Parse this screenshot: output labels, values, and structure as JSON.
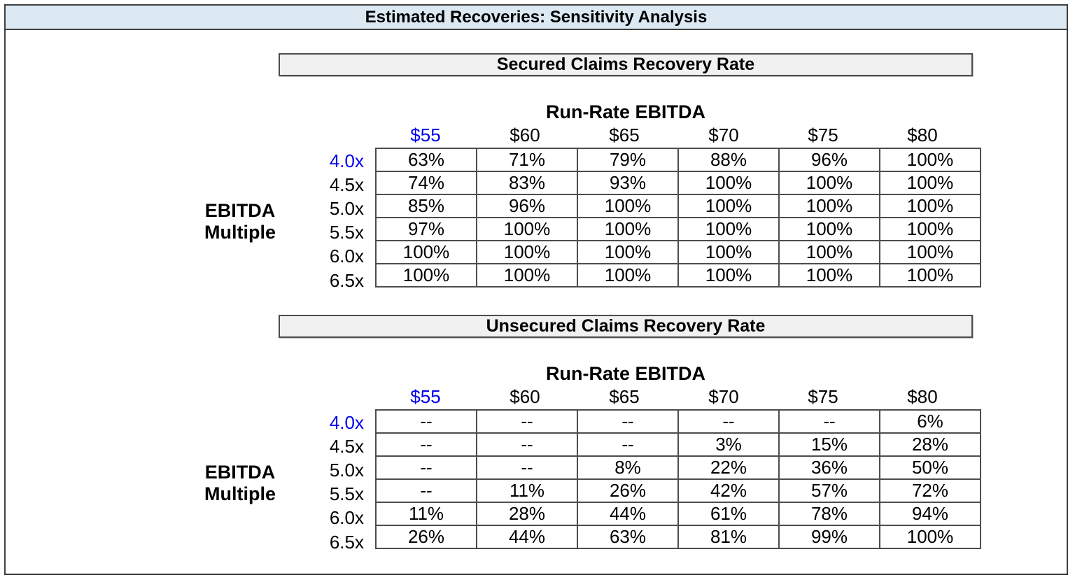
{
  "page": {
    "title": "Estimated Recoveries: Sensitivity Analysis"
  },
  "colors": {
    "title_bar_bg": "#dce9f2",
    "section_header_bg": "#f1f1f1",
    "frame_border": "#3f3f3f",
    "grid_border": "#4d4d4d",
    "base_case_blue": "#0000ee",
    "text": "#000000"
  },
  "chart_data": [
    {
      "type": "table",
      "title": "Secured Claims Recovery Rate",
      "column_axis_label": "Run-Rate EBITDA",
      "row_axis_label": "EBITDA Multiple",
      "columns": [
        "$55",
        "$60",
        "$65",
        "$70",
        "$75",
        "$80"
      ],
      "row_labels": [
        "4.0x",
        "4.5x",
        "5.0x",
        "5.5x",
        "6.0x",
        "6.5x"
      ],
      "rows": [
        [
          "63%",
          "71%",
          "79%",
          "88%",
          "96%",
          "100%"
        ],
        [
          "74%",
          "83%",
          "93%",
          "100%",
          "100%",
          "100%"
        ],
        [
          "85%",
          "96%",
          "100%",
          "100%",
          "100%",
          "100%"
        ],
        [
          "97%",
          "100%",
          "100%",
          "100%",
          "100%",
          "100%"
        ],
        [
          "100%",
          "100%",
          "100%",
          "100%",
          "100%",
          "100%"
        ],
        [
          "100%",
          "100%",
          "100%",
          "100%",
          "100%",
          "100%"
        ]
      ],
      "base_case": {
        "column": "$55",
        "row": "4.0x"
      }
    },
    {
      "type": "table",
      "title": "Unsecured Claims Recovery Rate",
      "column_axis_label": "Run-Rate EBITDA",
      "row_axis_label": "EBITDA Multiple",
      "columns": [
        "$55",
        "$60",
        "$65",
        "$70",
        "$75",
        "$80"
      ],
      "row_labels": [
        "4.0x",
        "4.5x",
        "5.0x",
        "5.5x",
        "6.0x",
        "6.5x"
      ],
      "rows": [
        [
          "--",
          "--",
          "--",
          "--",
          "--",
          "6%"
        ],
        [
          "--",
          "--",
          "--",
          "3%",
          "15%",
          "28%"
        ],
        [
          "--",
          "--",
          "8%",
          "22%",
          "36%",
          "50%"
        ],
        [
          "--",
          "11%",
          "26%",
          "42%",
          "57%",
          "72%"
        ],
        [
          "11%",
          "28%",
          "44%",
          "61%",
          "78%",
          "94%"
        ],
        [
          "26%",
          "44%",
          "63%",
          "81%",
          "99%",
          "100%"
        ]
      ],
      "base_case": {
        "column": "$55",
        "row": "4.0x"
      }
    }
  ]
}
